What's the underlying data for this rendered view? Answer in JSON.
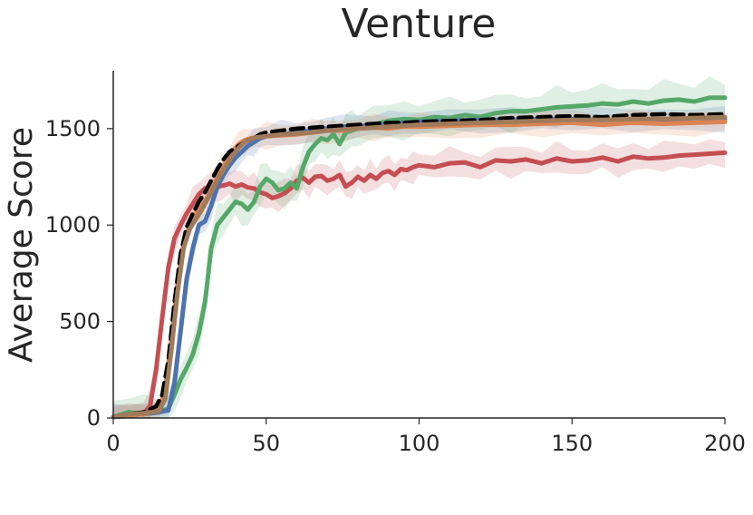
{
  "chart_data": {
    "type": "line",
    "title": "Venture",
    "xlabel": "",
    "ylabel": "Average Score",
    "xlim": [
      0,
      200
    ],
    "ylim": [
      0,
      1800
    ],
    "xticks": [
      0,
      50,
      100,
      150,
      200
    ],
    "yticks": [
      0,
      500,
      1000,
      1500
    ],
    "grid": false,
    "legend": "none",
    "series": [
      {
        "color": "#c44e52",
        "dashed": false,
        "band": 70,
        "x": [
          0,
          5,
          10,
          12,
          14,
          16,
          18,
          20,
          22,
          24,
          26,
          28,
          30,
          32,
          34,
          36,
          38,
          40,
          42,
          44,
          46,
          48,
          50,
          52,
          54,
          56,
          58,
          60,
          62,
          64,
          66,
          68,
          70,
          72,
          74,
          76,
          78,
          80,
          82,
          84,
          86,
          88,
          90,
          92,
          94,
          96,
          98,
          100,
          105,
          110,
          115,
          120,
          125,
          130,
          135,
          140,
          145,
          150,
          155,
          160,
          165,
          170,
          175,
          180,
          185,
          190,
          195,
          200
        ],
        "y": [
          5,
          10,
          25,
          60,
          250,
          520,
          780,
          930,
          1000,
          1060,
          1110,
          1160,
          1190,
          1195,
          1200,
          1205,
          1215,
          1200,
          1210,
          1195,
          1190,
          1170,
          1160,
          1140,
          1150,
          1165,
          1190,
          1230,
          1245,
          1220,
          1250,
          1255,
          1230,
          1240,
          1260,
          1200,
          1220,
          1250,
          1230,
          1260,
          1240,
          1270,
          1280,
          1260,
          1290,
          1285,
          1300,
          1310,
          1300,
          1320,
          1325,
          1300,
          1335,
          1330,
          1340,
          1320,
          1345,
          1330,
          1335,
          1350,
          1330,
          1355,
          1345,
          1350,
          1360,
          1365,
          1370,
          1375
        ]
      },
      {
        "color": "#55a868",
        "dashed": false,
        "band": 90,
        "x": [
          0,
          5,
          10,
          15,
          18,
          20,
          22,
          24,
          26,
          28,
          30,
          32,
          34,
          36,
          38,
          40,
          42,
          44,
          46,
          48,
          50,
          52,
          54,
          56,
          58,
          60,
          62,
          64,
          66,
          68,
          70,
          72,
          74,
          76,
          78,
          80,
          85,
          90,
          95,
          100,
          105,
          110,
          115,
          120,
          125,
          130,
          135,
          140,
          145,
          150,
          155,
          160,
          165,
          170,
          175,
          180,
          185,
          190,
          195,
          200
        ],
        "y": [
          5,
          30,
          20,
          30,
          50,
          120,
          200,
          260,
          330,
          440,
          600,
          880,
          1000,
          1040,
          1080,
          1120,
          1110,
          1080,
          1120,
          1200,
          1240,
          1220,
          1180,
          1190,
          1220,
          1190,
          1300,
          1380,
          1420,
          1450,
          1440,
          1470,
          1420,
          1480,
          1490,
          1500,
          1520,
          1540,
          1550,
          1545,
          1560,
          1555,
          1570,
          1560,
          1580,
          1590,
          1590,
          1600,
          1610,
          1615,
          1620,
          1630,
          1625,
          1640,
          1630,
          1645,
          1650,
          1640,
          1660,
          1660
        ]
      },
      {
        "color": "#4c72b0",
        "dashed": false,
        "band": 60,
        "x": [
          0,
          5,
          10,
          15,
          18,
          20,
          22,
          24,
          26,
          28,
          30,
          32,
          34,
          36,
          38,
          40,
          42,
          44,
          46,
          48,
          50,
          55,
          60,
          65,
          70,
          75,
          80,
          85,
          90,
          95,
          100,
          110,
          120,
          130,
          140,
          150,
          160,
          170,
          180,
          190,
          200
        ],
        "y": [
          5,
          15,
          20,
          30,
          40,
          180,
          450,
          720,
          880,
          1000,
          1020,
          1100,
          1200,
          1260,
          1310,
          1350,
          1380,
          1410,
          1430,
          1450,
          1460,
          1470,
          1480,
          1490,
          1500,
          1510,
          1510,
          1520,
          1520,
          1530,
          1535,
          1540,
          1545,
          1545,
          1550,
          1550,
          1545,
          1550,
          1540,
          1555,
          1550
        ]
      },
      {
        "color": "#dd8452",
        "dashed": false,
        "band": 60,
        "x": [
          0,
          5,
          10,
          15,
          17,
          19,
          21,
          23,
          25,
          27,
          29,
          31,
          33,
          35,
          37,
          39,
          41,
          43,
          45,
          47,
          50,
          55,
          60,
          65,
          70,
          75,
          80,
          85,
          90,
          95,
          100,
          110,
          120,
          130,
          140,
          150,
          160,
          170,
          180,
          190,
          200
        ],
        "y": [
          5,
          15,
          20,
          40,
          150,
          400,
          700,
          900,
          1000,
          1060,
          1100,
          1150,
          1220,
          1280,
          1330,
          1380,
          1420,
          1440,
          1450,
          1455,
          1460,
          1465,
          1470,
          1480,
          1490,
          1490,
          1500,
          1505,
          1500,
          1510,
          1510,
          1515,
          1520,
          1520,
          1525,
          1530,
          1520,
          1530,
          1525,
          1530,
          1535
        ]
      },
      {
        "color": "#000000",
        "dashed": true,
        "band": 0,
        "x": [
          0,
          5,
          10,
          14,
          16,
          18,
          20,
          22,
          24,
          26,
          28,
          30,
          32,
          34,
          36,
          38,
          40,
          42,
          44,
          46,
          48,
          50,
          55,
          60,
          65,
          70,
          75,
          80,
          85,
          90,
          95,
          100,
          110,
          120,
          130,
          140,
          150,
          160,
          170,
          180,
          190,
          200
        ],
        "y": [
          5,
          20,
          30,
          60,
          120,
          300,
          600,
          850,
          990,
          1060,
          1120,
          1170,
          1230,
          1290,
          1340,
          1380,
          1400,
          1420,
          1440,
          1450,
          1470,
          1480,
          1490,
          1500,
          1505,
          1510,
          1515,
          1520,
          1525,
          1530,
          1530,
          1535,
          1540,
          1545,
          1555,
          1560,
          1565,
          1560,
          1570,
          1575,
          1570,
          1575
        ]
      },
      {
        "color": "#a07b5b",
        "dashed": false,
        "band": 0,
        "x": [
          0,
          5,
          10,
          15,
          17,
          19,
          21,
          23,
          25,
          27,
          29,
          31,
          33,
          35,
          37,
          39,
          41,
          43,
          45,
          47,
          50,
          55,
          60,
          65,
          70,
          75,
          80,
          85,
          90,
          95,
          100,
          110,
          120,
          130,
          140,
          150,
          160,
          170,
          180,
          190,
          200
        ],
        "y": [
          5,
          20,
          25,
          35,
          100,
          350,
          650,
          880,
          980,
          1030,
          1080,
          1140,
          1200,
          1260,
          1310,
          1360,
          1400,
          1430,
          1445,
          1455,
          1460,
          1470,
          1475,
          1480,
          1490,
          1495,
          1500,
          1505,
          1510,
          1515,
          1520,
          1525,
          1530,
          1535,
          1540,
          1545,
          1545,
          1550,
          1550,
          1555,
          1560
        ]
      }
    ]
  }
}
